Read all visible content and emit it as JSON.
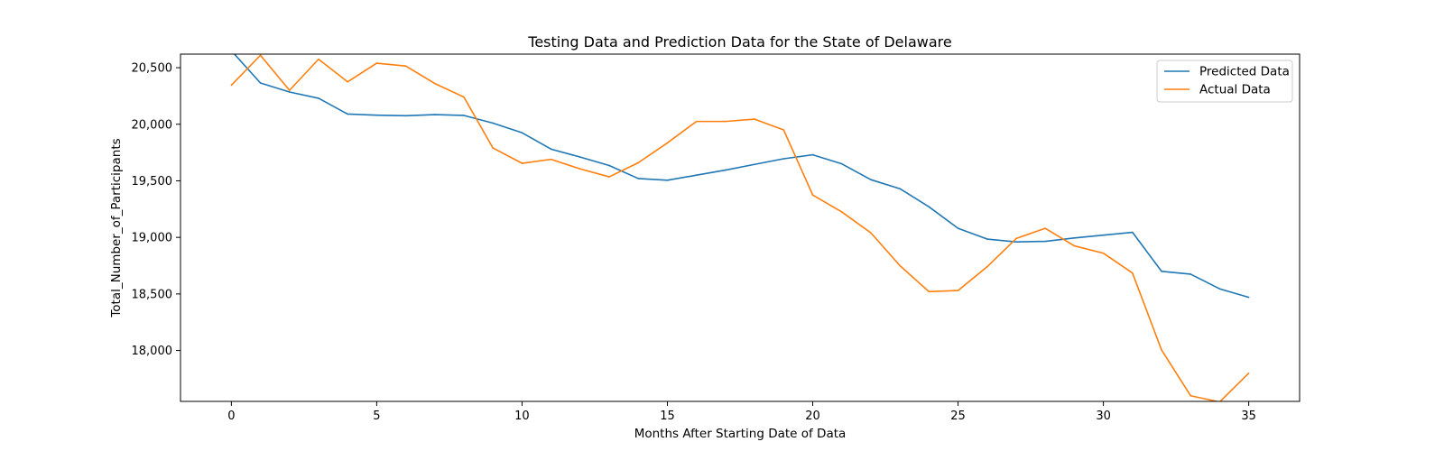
{
  "chart_data": {
    "type": "line",
    "title": "Testing Data and Prediction Data for the State of Delaware",
    "xlabel": "Months After Starting Date of Data",
    "ylabel": "Total_Number_of_Participants",
    "xlim": [
      -1.75,
      36.75
    ],
    "ylim": [
      17550,
      20620
    ],
    "x_ticks": [
      0,
      5,
      10,
      15,
      20,
      25,
      30,
      35
    ],
    "x_tick_labels": [
      "0",
      "5",
      "10",
      "15",
      "20",
      "25",
      "30",
      "35"
    ],
    "y_ticks": [
      18000,
      18500,
      19000,
      19500,
      20000,
      20500
    ],
    "y_tick_labels": [
      "18,000",
      "18,500",
      "19,000",
      "19,500",
      "20,000",
      "20,500"
    ],
    "grid": false,
    "legend_position": "top-right",
    "x": [
      0,
      1,
      2,
      3,
      4,
      5,
      6,
      7,
      8,
      9,
      10,
      11,
      12,
      13,
      14,
      15,
      16,
      17,
      18,
      19,
      20,
      21,
      22,
      23,
      24,
      25,
      26,
      27,
      28,
      29,
      30,
      31,
      32,
      33,
      34,
      35
    ],
    "series": [
      {
        "name": "Predicted Data",
        "color": "#1f77b4",
        "values": [
          20650,
          20365,
          20285,
          20230,
          20090,
          20080,
          20075,
          20085,
          20078,
          20010,
          19925,
          19780,
          19710,
          19635,
          19520,
          19505,
          19550,
          19595,
          19645,
          19695,
          19730,
          19650,
          19510,
          19430,
          19270,
          19080,
          18985,
          18960,
          18965,
          18995,
          19020,
          19045,
          18700,
          18675,
          18545,
          18470
        ]
      },
      {
        "name": "Actual Data",
        "color": "#ff7f0e",
        "values": [
          20345,
          20610,
          20300,
          20575,
          20375,
          20540,
          20515,
          20360,
          20240,
          19790,
          19655,
          19690,
          19605,
          19535,
          19660,
          19835,
          20025,
          20025,
          20045,
          19950,
          19375,
          19225,
          19040,
          18750,
          18520,
          18530,
          18740,
          18990,
          19080,
          18925,
          18860,
          18685,
          18005,
          17600,
          17545,
          17800
        ]
      }
    ]
  }
}
